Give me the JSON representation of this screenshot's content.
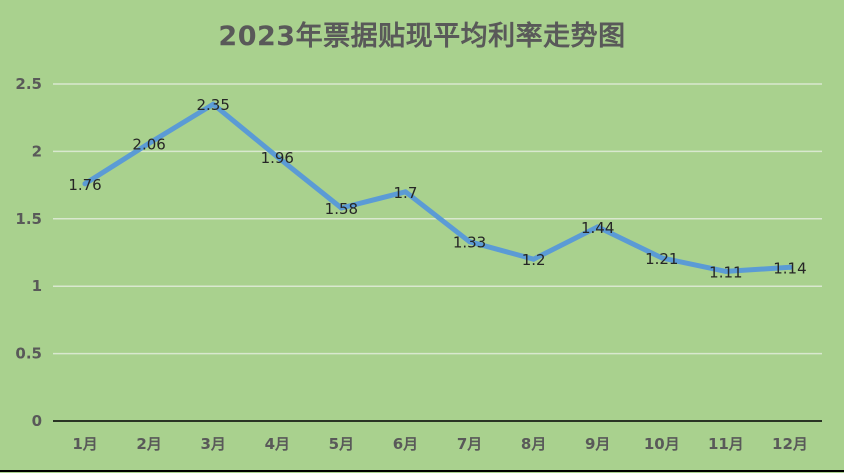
{
  "chart_data": {
    "type": "line",
    "title": "2023年票据贴现平均利率走势图",
    "categories": [
      "1月",
      "2月",
      "3月",
      "4月",
      "5月",
      "6月",
      "7月",
      "8月",
      "9月",
      "10月",
      "11月",
      "12月"
    ],
    "series": [
      {
        "values": [
          1.76,
          2.06,
          2.35,
          1.96,
          1.58,
          1.7,
          1.33,
          1.2,
          1.44,
          1.21,
          1.11,
          1.14
        ]
      }
    ],
    "y_ticks": [
      "0",
      "0.5",
      "1",
      "1.5",
      "2",
      "2.5"
    ],
    "ylim": [
      0,
      2.5
    ],
    "grid": true,
    "data_labels": true,
    "legend": "none",
    "colors": {
      "background": "#a9d18e",
      "line": "#5b9bd5",
      "grid": "#d9e8cf",
      "axis": "#000000",
      "tick_text": "#595959",
      "label_text": "#262626"
    }
  }
}
